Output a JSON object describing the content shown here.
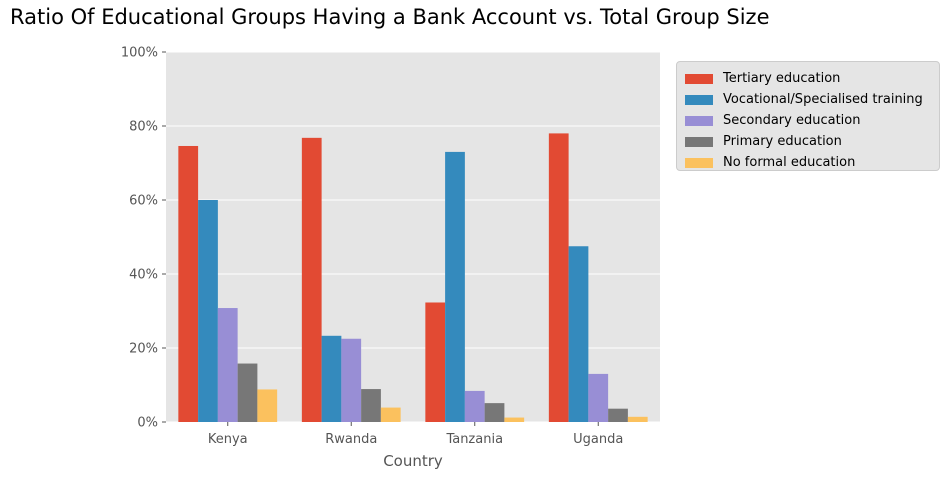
{
  "chart_data": {
    "type": "bar",
    "title": "Ratio Of Educational Groups Having a Bank Account vs. Total Group Size",
    "xlabel": "Country",
    "ylabel": "",
    "ylim": [
      0,
      100
    ],
    "yticks": [
      "0%",
      "20%",
      "40%",
      "60%",
      "80%",
      "100%"
    ],
    "ytick_values": [
      0,
      20,
      40,
      60,
      80,
      100
    ],
    "grid": true,
    "legend_position": "outside-right-top",
    "categories": [
      "Kenya",
      "Rwanda",
      "Tanzania",
      "Uganda"
    ],
    "series": [
      {
        "name": "Tertiary education",
        "color": "#E24A33",
        "values": [
          74.6,
          76.8,
          32.3,
          78.0
        ]
      },
      {
        "name": "Vocational/Specialised training",
        "color": "#348ABD",
        "values": [
          60.0,
          23.3,
          73.0,
          47.5
        ]
      },
      {
        "name": "Secondary education",
        "color": "#988ED5",
        "values": [
          30.8,
          22.5,
          8.4,
          13.0
        ]
      },
      {
        "name": "Primary education",
        "color": "#777777",
        "values": [
          15.8,
          8.9,
          5.1,
          3.6
        ]
      },
      {
        "name": "No formal education",
        "color": "#FBC15E",
        "values": [
          8.8,
          3.9,
          1.2,
          1.4
        ]
      }
    ]
  }
}
